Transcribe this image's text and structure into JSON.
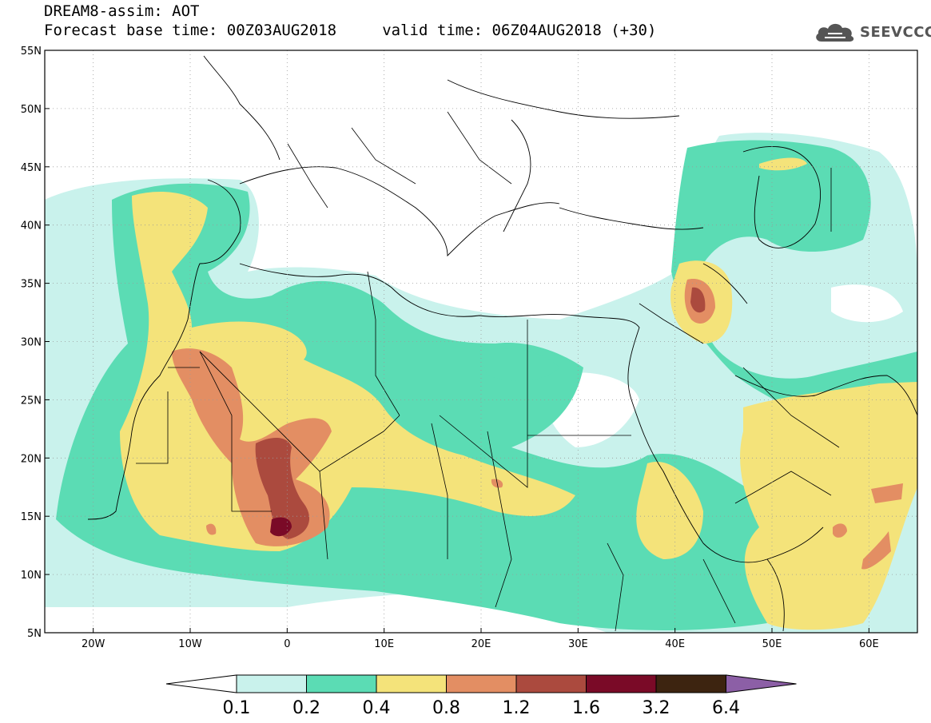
{
  "header": {
    "title_line1": "DREAM8-assim: AOT",
    "title_line2": "Forecast base time: 00Z03AUG2018     valid time: 06Z04AUG2018 (+30)"
  },
  "logo": {
    "text": "SEEVCCC",
    "icon": "cloud-icon"
  },
  "map": {
    "lon_range": [
      -25,
      65
    ],
    "lat_range": [
      5,
      55
    ],
    "lon_ticks": [
      {
        "value": -20,
        "label": "20W"
      },
      {
        "value": -10,
        "label": "10W"
      },
      {
        "value": 0,
        "label": "0"
      },
      {
        "value": 10,
        "label": "10E"
      },
      {
        "value": 20,
        "label": "20E"
      },
      {
        "value": 30,
        "label": "30E"
      },
      {
        "value": 40,
        "label": "40E"
      },
      {
        "value": 50,
        "label": "50E"
      },
      {
        "value": 60,
        "label": "60E"
      }
    ],
    "lat_ticks": [
      {
        "value": 55,
        "label": "55N"
      },
      {
        "value": 50,
        "label": "50N"
      },
      {
        "value": 45,
        "label": "45N"
      },
      {
        "value": 40,
        "label": "40N"
      },
      {
        "value": 35,
        "label": "35N"
      },
      {
        "value": 30,
        "label": "30N"
      },
      {
        "value": 25,
        "label": "25N"
      },
      {
        "value": 20,
        "label": "20N"
      },
      {
        "value": 15,
        "label": "15N"
      },
      {
        "value": 10,
        "label": "10N"
      },
      {
        "value": 5,
        "label": "5N"
      }
    ],
    "grid": "dotted"
  },
  "colorbar": {
    "bins": [
      {
        "color": "#c9f2ec"
      },
      {
        "color": "#5bdcb4"
      },
      {
        "color": "#f4e37a"
      },
      {
        "color": "#e38e63"
      },
      {
        "color": "#ab4a3e"
      },
      {
        "color": "#7a0a27"
      },
      {
        "color": "#3d2410"
      }
    ],
    "under_color": "#ffffff",
    "over_color": "#8c5fa6",
    "labels": [
      "0.1",
      "0.2",
      "0.4",
      "0.8",
      "1.2",
      "1.6",
      "3.2",
      "6.4"
    ]
  }
}
